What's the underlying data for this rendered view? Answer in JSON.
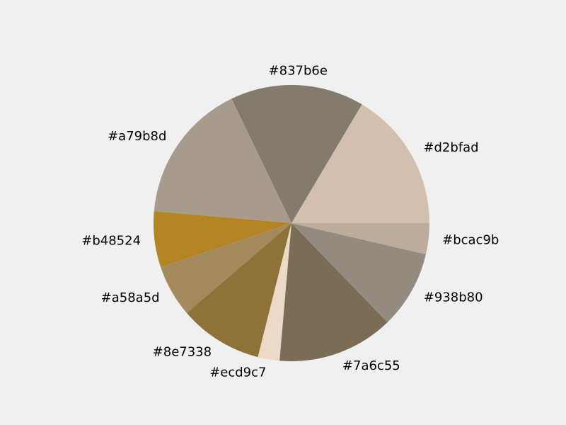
{
  "chart_data": {
    "type": "pie",
    "title": "",
    "start_angle_deg": 0,
    "direction": "counterclockwise",
    "slices": [
      {
        "label": "#d2bfad",
        "value": 16.8,
        "color": "#d2bfad"
      },
      {
        "label": "#837b6e",
        "value": 16.0,
        "color": "#837b6e"
      },
      {
        "label": "#a79b8d",
        "value": 16.8,
        "color": "#a79b8d"
      },
      {
        "label": "#b48524",
        "value": 6.7,
        "color": "#b48524"
      },
      {
        "label": "#a58a5d",
        "value": 6.2,
        "color": "#a58a5d"
      },
      {
        "label": "#8e7338",
        "value": 10.0,
        "color": "#8e7338"
      },
      {
        "label": "#ecd9c7",
        "value": 2.6,
        "color": "#ecd9c7"
      },
      {
        "label": "#7a6c55",
        "value": 13.9,
        "color": "#7a6c55"
      },
      {
        "label": "#938b80",
        "value": 9.3,
        "color": "#938b80"
      },
      {
        "label": "#bcac9b",
        "value": 3.7,
        "color": "#bcac9b"
      }
    ]
  }
}
